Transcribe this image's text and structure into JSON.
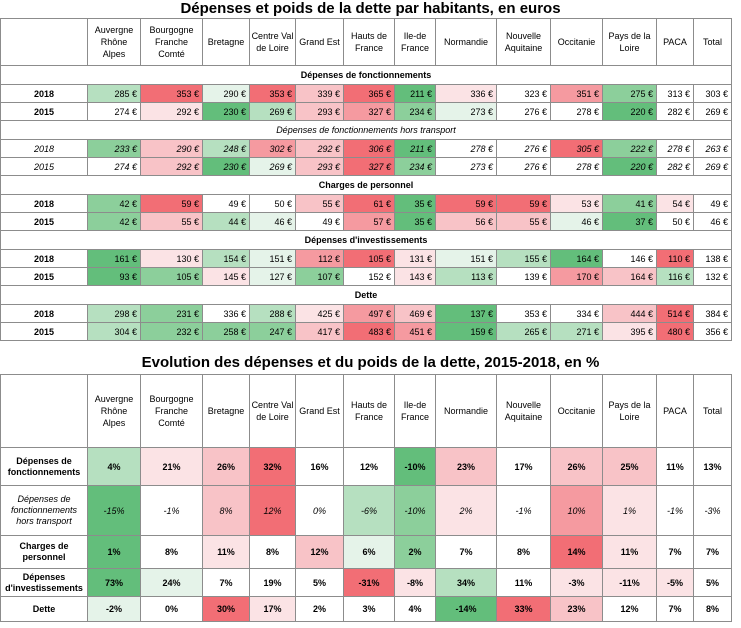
{
  "title1": "Dépenses  et poids de la dette par habitants, en euros",
  "title2": "Evolution des dépenses et du poids de la dette, 2015-2018, en %",
  "regions": [
    "Auvergne Rhône Alpes",
    "Bourgogne Franche Comté",
    "Bretagne",
    "Centre Val de Loire",
    "Grand Est",
    "Hauts de France",
    "Ile-de France",
    "Normandie",
    "Nouvelle Aquitaine",
    "Occitanie",
    "Pays de la Loire",
    "PACA",
    "Total"
  ],
  "colors": {
    "g3": "#63be7b",
    "g2": "#8ccf9b",
    "g1": "#b6e0c0",
    "g0": "#e5f3e9",
    "w": "#ffffff",
    "r0": "#fbe3e5",
    "r1": "#f8c3c7",
    "r2": "#f59aa0",
    "r3": "#f26e75"
  },
  "table1": {
    "sections": [
      {
        "title": "Dépenses de fonctionnements",
        "italic": false,
        "rows": [
          {
            "label": "2018",
            "values": [
              "285 €",
              "353 €",
              "290 €",
              "353 €",
              "339 €",
              "365 €",
              "211 €",
              "336 €",
              "323 €",
              "351 €",
              "275 €",
              "313 €",
              "303 €"
            ],
            "shades": [
              "g1",
              "r3",
              "g0",
              "r3",
              "r1",
              "r3",
              "g3",
              "r0",
              "w",
              "r2",
              "g2",
              "w",
              "w"
            ]
          },
          {
            "label": "2015",
            "values": [
              "274 €",
              "292 €",
              "230 €",
              "269 €",
              "293 €",
              "327 €",
              "234 €",
              "273 €",
              "276 €",
              "278 €",
              "220 €",
              "282 €",
              "269 €"
            ],
            "shades": [
              "w",
              "r0",
              "g3",
              "g1",
              "r1",
              "r2",
              "g2",
              "g0",
              "w",
              "w",
              "g3",
              "w",
              "w"
            ]
          }
        ]
      },
      {
        "title": "Dépenses de fonctionnements hors transport",
        "italic": true,
        "rows": [
          {
            "label": "2018",
            "values": [
              "233 €",
              "290 €",
              "248 €",
              "302 €",
              "292 €",
              "306 €",
              "211 €",
              "278 €",
              "276 €",
              "305 €",
              "222 €",
              "278 €",
              "263 €"
            ],
            "shades": [
              "g2",
              "r1",
              "g1",
              "r2",
              "r1",
              "r3",
              "g3",
              "w",
              "w",
              "r3",
              "g2",
              "w",
              "w"
            ]
          },
          {
            "label": "2015",
            "values": [
              "274 €",
              "292 €",
              "230 €",
              "269 €",
              "293 €",
              "327 €",
              "234 €",
              "273 €",
              "276 €",
              "278 €",
              "220 €",
              "282 €",
              "269 €"
            ],
            "shades": [
              "w",
              "r1",
              "g3",
              "g0",
              "r1",
              "r3",
              "g2",
              "w",
              "w",
              "w",
              "g3",
              "w",
              "w"
            ]
          }
        ]
      },
      {
        "title": "Charges de personnel",
        "italic": false,
        "rows": [
          {
            "label": "2018",
            "values": [
              "42 €",
              "59 €",
              "49 €",
              "50 €",
              "55 €",
              "61 €",
              "35 €",
              "59 €",
              "59 €",
              "53 €",
              "41 €",
              "54 €",
              "49 €"
            ],
            "shades": [
              "g2",
              "r3",
              "w",
              "w",
              "r1",
              "r3",
              "g3",
              "r3",
              "r3",
              "r0",
              "g2",
              "r0",
              "w"
            ]
          },
          {
            "label": "2015",
            "values": [
              "42 €",
              "55 €",
              "44 €",
              "46 €",
              "49 €",
              "57 €",
              "35 €",
              "56 €",
              "55 €",
              "46 €",
              "37 €",
              "50 €",
              "46 €"
            ],
            "shades": [
              "g2",
              "r1",
              "g1",
              "g0",
              "w",
              "r2",
              "g3",
              "r1",
              "r1",
              "g0",
              "g3",
              "w",
              "w"
            ]
          }
        ]
      },
      {
        "title": "Dépenses d'investissements",
        "italic": false,
        "rows": [
          {
            "label": "2018",
            "values": [
              "161 €",
              "130 €",
              "154 €",
              "151 €",
              "112 €",
              "105 €",
              "131 €",
              "151 €",
              "155 €",
              "164 €",
              "146 €",
              "110 €",
              "138 €"
            ],
            "shades": [
              "g3",
              "r0",
              "g1",
              "g0",
              "r2",
              "r3",
              "r0",
              "g0",
              "g1",
              "g3",
              "w",
              "r3",
              "w"
            ]
          },
          {
            "label": "2015",
            "values": [
              "93 €",
              "105 €",
              "145 €",
              "127 €",
              "107 €",
              "152 €",
              "143 €",
              "113 €",
              "139 €",
              "170 €",
              "164 €",
              "116 €",
              "132 €"
            ],
            "shades": [
              "g3",
              "g2",
              "r0",
              "g0",
              "g2",
              "w",
              "r0",
              "g1",
              "w",
              "r2",
              "r1",
              "g1",
              "w"
            ]
          }
        ]
      },
      {
        "title": "Dette",
        "italic": false,
        "rows": [
          {
            "label": "2018",
            "values": [
              "298 €",
              "231 €",
              "336 €",
              "288 €",
              "425 €",
              "497 €",
              "469 €",
              "137 €",
              "353 €",
              "334 €",
              "444 €",
              "514 €",
              "384 €"
            ],
            "shades": [
              "g1",
              "g2",
              "w",
              "g1",
              "r0",
              "r2",
              "r1",
              "g3",
              "w",
              "w",
              "r1",
              "r3",
              "w"
            ]
          },
          {
            "label": "2015",
            "values": [
              "304 €",
              "232 €",
              "258 €",
              "247 €",
              "417 €",
              "483 €",
              "451 €",
              "159 €",
              "265 €",
              "271 €",
              "395 €",
              "480 €",
              "356 €"
            ],
            "shades": [
              "g1",
              "g2",
              "g2",
              "g2",
              "r1",
              "r3",
              "r2",
              "g3",
              "g1",
              "g1",
              "r0",
              "r3",
              "w"
            ]
          }
        ]
      }
    ]
  },
  "table2": {
    "rows": [
      {
        "label": "Dépenses de fonctionnements",
        "italic": false,
        "values": [
          "4%",
          "21%",
          "26%",
          "32%",
          "16%",
          "12%",
          "-10%",
          "23%",
          "17%",
          "26%",
          "25%",
          "11%",
          "13%"
        ],
        "shades": [
          "g1",
          "r0",
          "r1",
          "r3",
          "w",
          "w",
          "g3",
          "r1",
          "w",
          "r1",
          "r1",
          "w",
          "w"
        ]
      },
      {
        "label": "Dépenses de fonctionnements hors transport",
        "italic": true,
        "values": [
          "-15%",
          "-1%",
          "8%",
          "12%",
          "0%",
          "-6%",
          "-10%",
          "2%",
          "-1%",
          "10%",
          "1%",
          "-1%",
          "-3%"
        ],
        "shades": [
          "g3",
          "w",
          "r1",
          "r3",
          "w",
          "g1",
          "g2",
          "r0",
          "w",
          "r2",
          "r0",
          "w",
          "w"
        ]
      },
      {
        "label": "Charges de personnel",
        "italic": false,
        "values": [
          "1%",
          "8%",
          "11%",
          "8%",
          "12%",
          "6%",
          "2%",
          "7%",
          "8%",
          "14%",
          "11%",
          "7%",
          "7%"
        ],
        "shades": [
          "g3",
          "w",
          "r0",
          "w",
          "r1",
          "g0",
          "g2",
          "w",
          "w",
          "r3",
          "r0",
          "w",
          "w"
        ]
      },
      {
        "label": "Dépenses d'investissements",
        "italic": false,
        "values": [
          "73%",
          "24%",
          "7%",
          "19%",
          "5%",
          "-31%",
          "-8%",
          "34%",
          "11%",
          "-3%",
          "-11%",
          "-5%",
          "5%"
        ],
        "shades": [
          "g3",
          "g0",
          "w",
          "w",
          "w",
          "r3",
          "r0",
          "g1",
          "w",
          "r0",
          "r0",
          "r0",
          "w"
        ]
      },
      {
        "label": "Dette",
        "italic": false,
        "values": [
          "-2%",
          "0%",
          "30%",
          "17%",
          "2%",
          "3%",
          "4%",
          "-14%",
          "33%",
          "23%",
          "12%",
          "7%",
          "8%"
        ],
        "shades": [
          "g0",
          "w",
          "r3",
          "r0",
          "w",
          "w",
          "w",
          "g3",
          "r3",
          "r1",
          "w",
          "w",
          "w"
        ]
      }
    ]
  }
}
